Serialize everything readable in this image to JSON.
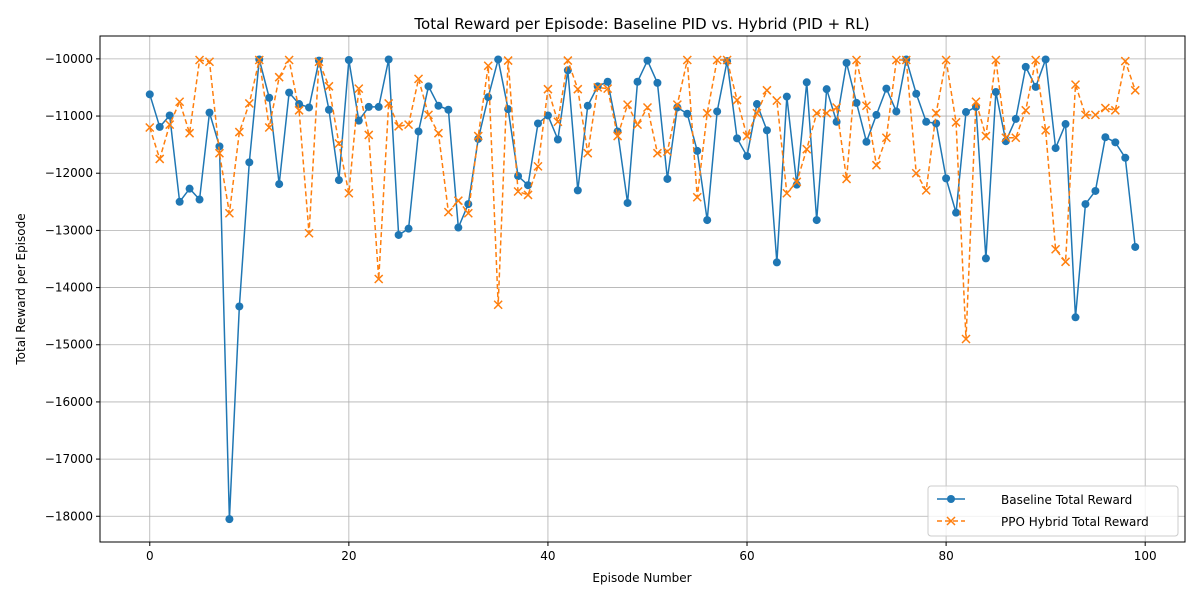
{
  "chart_data": {
    "type": "line",
    "title": "Total Reward per Episode: Baseline PID vs. Hybrid (PID + RL)",
    "xlabel": "Episode Number",
    "ylabel": "Total Reward per Episode",
    "xlim": [
      -5,
      104
    ],
    "ylim": [
      -18450,
      -9600
    ],
    "xticks": [
      0,
      20,
      40,
      60,
      80,
      100
    ],
    "yticks": [
      -18000,
      -17000,
      -16000,
      -15000,
      -14000,
      -13000,
      -12000,
      -11000,
      -10000
    ],
    "grid": true,
    "legend_position": "bottom-right",
    "series": [
      {
        "name": "Baseline Total Reward",
        "color": "#1f77b4",
        "linestyle": "solid",
        "marker": "circle",
        "values": [
          -10620,
          -11190,
          -10990,
          -12500,
          -12270,
          -12460,
          -10940,
          -11530,
          -18050,
          -14330,
          -11810,
          -10010,
          -10680,
          -12190,
          -10590,
          -10790,
          -10850,
          -10030,
          -10890,
          -12120,
          -10020,
          -11080,
          -10840,
          -10840,
          -10010,
          -13080,
          -12970,
          -11270,
          -10480,
          -10820,
          -10890,
          -12950,
          -12540,
          -11400,
          -10670,
          -10010,
          -10880,
          -12050,
          -12210,
          -11130,
          -10990,
          -11410,
          -10200,
          -12300,
          -10820,
          -10480,
          -10400,
          -11270,
          -12520,
          -10400,
          -10030,
          -10420,
          -12100,
          -10850,
          -10960,
          -11610,
          -12820,
          -10920,
          -10040,
          -11390,
          -11700,
          -10790,
          -11250,
          -13560,
          -10660,
          -12200,
          -10410,
          -12820,
          -10530,
          -11100,
          -10070,
          -10770,
          -11450,
          -10980,
          -10520,
          -10920,
          -10010,
          -10610,
          -11100,
          -11130,
          -12090,
          -12690,
          -10930,
          -10840,
          -13490,
          -10580,
          -11440,
          -11050,
          -10140,
          -10490,
          -10010,
          -11560,
          -11140,
          -14520,
          -12540,
          -12310,
          -11370,
          -11460,
          -11730,
          -13290
        ]
      },
      {
        "name": "PPO Hybrid Total Reward",
        "color": "#ff7f0e",
        "linestyle": "dashed",
        "marker": "x",
        "values": [
          -11200,
          -11750,
          -11150,
          -10750,
          -11300,
          -10020,
          -10050,
          -11650,
          -12700,
          -11280,
          -10780,
          -10020,
          -11200,
          -10320,
          -10020,
          -10900,
          -13050,
          -10050,
          -10480,
          -11480,
          -12350,
          -10520,
          -11330,
          -13850,
          -10780,
          -11180,
          -11150,
          -10350,
          -10980,
          -11300,
          -12680,
          -12480,
          -12700,
          -11350,
          -10120,
          -14300,
          -10030,
          -12320,
          -12380,
          -11880,
          -10530,
          -11100,
          -10030,
          -10530,
          -11650,
          -10500,
          -10520,
          -11350,
          -10800,
          -11150,
          -10850,
          -11650,
          -11620,
          -10800,
          -10020,
          -12420,
          -10950,
          -10020,
          -10020,
          -10720,
          -11350,
          -10950,
          -10550,
          -10730,
          -12350,
          -12150,
          -11580,
          -10950,
          -10950,
          -10850,
          -12100,
          -10020,
          -10820,
          -11860,
          -11380,
          -10020,
          -10020,
          -12000,
          -12300,
          -10950,
          -10020,
          -11110,
          -14900,
          -10750,
          -11350,
          -10020,
          -11380,
          -11380,
          -10900,
          -10020,
          -11250,
          -13330,
          -13550,
          -10450,
          -10980,
          -10980,
          -10860,
          -10900,
          -10040,
          -10550
        ]
      }
    ]
  }
}
